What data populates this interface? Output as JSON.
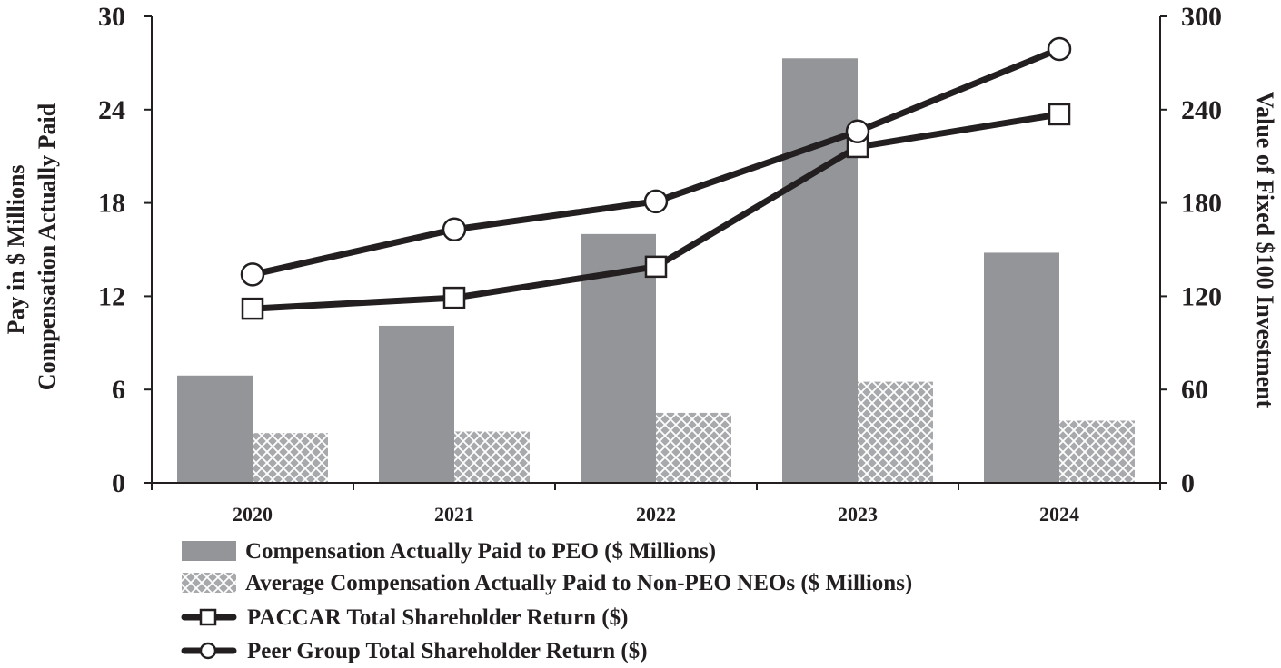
{
  "chart_data": {
    "type": "bar",
    "categories": [
      "2020",
      "2021",
      "2022",
      "2023",
      "2024"
    ],
    "left_axis": {
      "title_lines": [
        "Pay in $ Millions",
        "Compensation Actually Paid"
      ],
      "ylim": [
        0,
        30
      ],
      "ticks": [
        "0",
        "6",
        "12",
        "18",
        "24",
        "30"
      ]
    },
    "right_axis": {
      "title": "Value of Fixed $100 Investment",
      "ylim": [
        0,
        300
      ],
      "ticks": [
        "0",
        "60",
        "120",
        "180",
        "240",
        "300"
      ]
    },
    "series": [
      {
        "name": "Compensation Actually Paid to PEO ($ Millions)",
        "kind": "bar",
        "axis": "left",
        "style": "solid",
        "color": "#939598",
        "values": [
          6.9,
          10.1,
          16.0,
          27.3,
          14.8
        ]
      },
      {
        "name": "Average Compensation Actually Paid to Non-PEO NEOs ($ Millions)",
        "kind": "bar",
        "axis": "left",
        "style": "crosshatch",
        "color": "#b5b6b8",
        "values": [
          3.2,
          3.3,
          4.5,
          6.5,
          4.0
        ]
      },
      {
        "name": "PACCAR Total Shareholder Return ($)",
        "kind": "line",
        "axis": "right",
        "marker": "square",
        "color": "#231f20",
        "values": [
          112,
          119,
          139,
          216,
          237
        ]
      },
      {
        "name": "Peer Group Total Shareholder Return ($)",
        "kind": "line",
        "axis": "right",
        "marker": "circle",
        "color": "#231f20",
        "values": [
          134,
          163,
          181,
          226,
          279
        ]
      }
    ]
  }
}
